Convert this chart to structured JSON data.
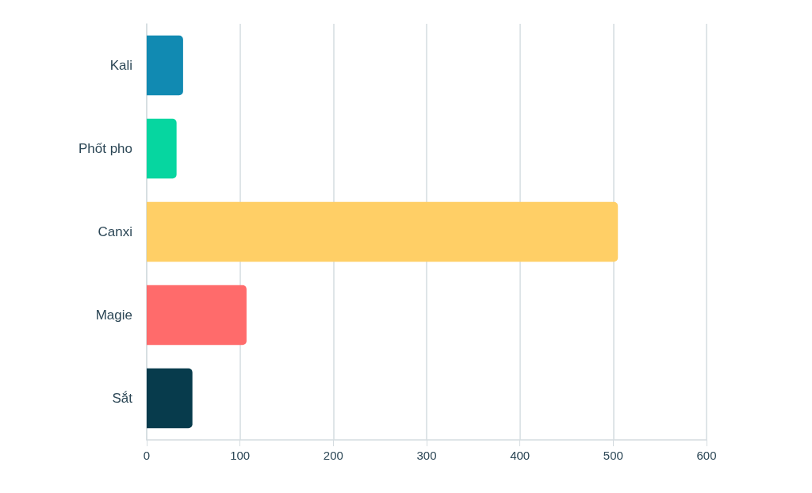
{
  "chart_data": {
    "type": "bar",
    "orientation": "horizontal",
    "categories": [
      "Kali",
      "Phốt pho",
      "Canxi",
      "Magie",
      "Sắt"
    ],
    "values": [
      39,
      32,
      505,
      107,
      49
    ],
    "colors": [
      "#118ab2",
      "#06d6a0",
      "#ffcf66",
      "#ff6b6b",
      "#073b4c"
    ],
    "xlim": [
      0,
      600
    ],
    "xticks": [
      0,
      100,
      200,
      300,
      400,
      500,
      600
    ],
    "grid": "x"
  }
}
